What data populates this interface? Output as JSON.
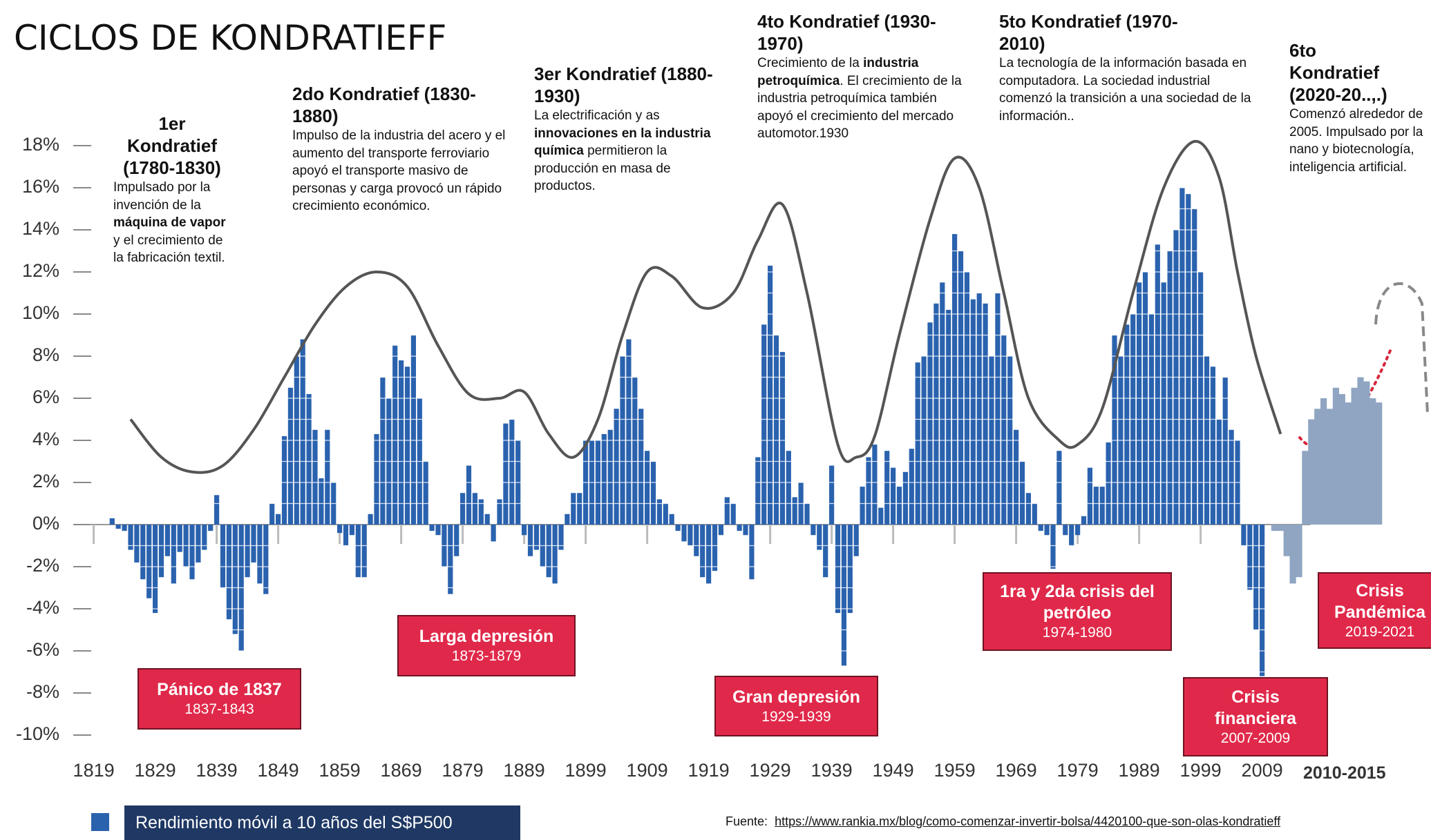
{
  "chart_data": {
    "type": "bar",
    "title": "CICLOS DE KONDRATIEFF",
    "x": [
      1822,
      1823,
      1824,
      1825,
      1826,
      1827,
      1828,
      1829,
      1830,
      1831,
      1832,
      1833,
      1834,
      1835,
      1836,
      1837,
      1838,
      1839,
      1840,
      1841,
      1842,
      1843,
      1844,
      1845,
      1846,
      1847,
      1848,
      1849,
      1850,
      1851,
      1852,
      1853,
      1854,
      1855,
      1856,
      1857,
      1858,
      1859,
      1860,
      1861,
      1862,
      1863,
      1864,
      1865,
      1866,
      1867,
      1868,
      1869,
      1870,
      1871,
      1872,
      1873,
      1874,
      1875,
      1876,
      1877,
      1878,
      1879,
      1880,
      1881,
      1882,
      1883,
      1884,
      1885,
      1886,
      1887,
      1888,
      1889,
      1890,
      1891,
      1892,
      1893,
      1894,
      1895,
      1896,
      1897,
      1898,
      1899,
      1900,
      1901,
      1902,
      1903,
      1904,
      1905,
      1906,
      1907,
      1908,
      1909,
      1910,
      1911,
      1912,
      1913,
      1914,
      1915,
      1916,
      1917,
      1918,
      1919,
      1920,
      1921,
      1922,
      1923,
      1924,
      1925,
      1926,
      1927,
      1928,
      1929,
      1930,
      1931,
      1932,
      1933,
      1934,
      1935,
      1936,
      1937,
      1938,
      1939,
      1940,
      1941,
      1942,
      1943,
      1944,
      1945,
      1946,
      1947,
      1948,
      1949,
      1950,
      1951,
      1952,
      1953,
      1954,
      1955,
      1956,
      1957,
      1958,
      1959,
      1960,
      1961,
      1962,
      1963,
      1964,
      1965,
      1966,
      1967,
      1968,
      1969,
      1970,
      1971,
      1972,
      1973,
      1974,
      1975,
      1976,
      1977,
      1978,
      1979,
      1980,
      1981,
      1982,
      1983,
      1984,
      1985,
      1986,
      1987,
      1988,
      1989,
      1990,
      1991,
      1992,
      1993,
      1994,
      1995,
      1996,
      1997,
      1998,
      1999,
      2000,
      2001,
      2002,
      2003,
      2004,
      2005,
      2006,
      2007,
      2008,
      2009
    ],
    "series": [
      {
        "name": "Rendimiento móvil a 10 años del S$P500",
        "color": "#2a62ae",
        "values": [
          0.3,
          -0.2,
          -0.3,
          -1.2,
          -1.8,
          -2.6,
          -3.5,
          -4.2,
          -2.5,
          -1.5,
          -2.8,
          -1.3,
          -2.0,
          -2.6,
          -1.8,
          -1.2,
          -0.3,
          1.4,
          -3.0,
          -4.5,
          -5.2,
          -6.0,
          -2.5,
          -1.8,
          -2.8,
          -3.3,
          1.0,
          0.5,
          4.2,
          6.5,
          8.0,
          8.8,
          6.2,
          4.5,
          2.2,
          4.5,
          2.0,
          -0.4,
          -1.0,
          -0.5,
          -2.5,
          -2.5,
          0.5,
          4.3,
          7.0,
          6.0,
          8.5,
          7.8,
          7.5,
          9.0,
          6.0,
          3.0,
          -0.3,
          -0.5,
          -2.0,
          -3.3,
          -1.5,
          1.5,
          2.8,
          1.5,
          1.2,
          0.5,
          -0.8,
          1.2,
          4.8,
          5.0,
          4.0,
          -0.5,
          -1.5,
          -1.2,
          -2.0,
          -2.5,
          -2.8,
          -1.2,
          0.5,
          1.5,
          1.5,
          4.0,
          4.0,
          4.0,
          4.3,
          4.5,
          5.5,
          8.0,
          8.8,
          7.0,
          5.5,
          3.5,
          3.0,
          1.2,
          1.0,
          0.5,
          -0.3,
          -0.8,
          -1.0,
          -1.5,
          -2.5,
          -2.8,
          -2.2,
          -0.5,
          1.3,
          1.0,
          -0.3,
          -0.5,
          -2.6,
          3.2,
          9.5,
          12.3,
          9.0,
          8.2,
          3.5,
          1.3,
          2.0,
          1.0,
          -0.5,
          -1.2,
          -2.5,
          2.8,
          -4.2,
          -6.7,
          -4.2,
          -1.5,
          1.8,
          3.2,
          3.8,
          0.8,
          3.5,
          2.7,
          1.8,
          2.5,
          3.6,
          7.7,
          8.0,
          9.6,
          10.5,
          11.5,
          10.2,
          13.8,
          13.0,
          12.0,
          10.7,
          11.0,
          10.5,
          8.0,
          11.0,
          9.0,
          8.0,
          4.5,
          3.0,
          1.5,
          1.0,
          -0.3,
          -0.5,
          -2.1,
          3.5,
          -0.5,
          -1.0,
          -0.5,
          0.4,
          2.7,
          1.8,
          1.8,
          3.9,
          9.0,
          8.0,
          9.5,
          10.0,
          11.5,
          12.0,
          10.0,
          13.3,
          11.5,
          13.0,
          14.0,
          16.0,
          15.7,
          15.0,
          12.0,
          8.0,
          7.5,
          5.0,
          7.0,
          4.5,
          4.0,
          -1.0,
          -3.1,
          -5.0,
          -7.2
        ]
      }
    ],
    "projection": {
      "color": "#8fa5c2",
      "x": [
        2011,
        2012,
        2013,
        2014,
        2015,
        2016,
        2017,
        2018,
        2019,
        2020,
        2021,
        2022,
        2023,
        2024,
        2025,
        2026,
        2027,
        2028
      ],
      "values": [
        -0.3,
        -0.3,
        -1.5,
        -2.8,
        -2.5,
        3.5,
        5.0,
        5.5,
        6.0,
        5.5,
        6.5,
        6.2,
        5.8,
        6.5,
        7.0,
        6.8,
        6.0,
        5.8
      ]
    },
    "curve": {
      "color": "#555555",
      "x": [
        1825,
        1830,
        1835,
        1840,
        1845,
        1850,
        1855,
        1860,
        1865,
        1870,
        1875,
        1880,
        1885,
        1889,
        1893,
        1897,
        1901,
        1905,
        1909,
        1913,
        1918,
        1923,
        1927,
        1931,
        1935,
        1940,
        1943,
        1946,
        1950,
        1955,
        1959,
        1963,
        1967,
        1971,
        1976,
        1979,
        1983,
        1988,
        1993,
        1998,
        2002,
        2005,
        2008,
        2012
      ],
      "values": [
        5.0,
        3.2,
        2.5,
        2.8,
        4.5,
        7.0,
        9.5,
        11.3,
        12.0,
        11.3,
        8.5,
        6.2,
        6.0,
        6.3,
        4.3,
        3.2,
        5.0,
        9.0,
        12.0,
        11.8,
        10.3,
        11.0,
        13.5,
        15.2,
        11.0,
        3.8,
        3.2,
        4.2,
        9.0,
        14.5,
        17.4,
        16.0,
        11.0,
        6.0,
        4.0,
        3.8,
        5.5,
        11.0,
        16.0,
        18.2,
        16.5,
        12.0,
        8.0,
        4.3
      ]
    },
    "xlim": [
      1815,
      2035
    ],
    "ylim": [
      -10,
      18
    ],
    "xticks": [
      1819,
      1829,
      1839,
      1849,
      1859,
      1869,
      1879,
      1889,
      1899,
      1909,
      1919,
      1929,
      1939,
      1949,
      1959,
      1969,
      1979,
      1989,
      1999,
      2009
    ],
    "yticks": [
      {
        "value": 18,
        "label": "18%"
      },
      {
        "value": 16,
        "label": "16%"
      },
      {
        "value": 14,
        "label": "14%"
      },
      {
        "value": 12,
        "label": "12%"
      },
      {
        "value": 10,
        "label": "10%"
      },
      {
        "value": 8,
        "label": "8%"
      },
      {
        "value": 6,
        "label": "6%"
      },
      {
        "value": 4,
        "label": "4%"
      },
      {
        "value": 2,
        "label": "2%"
      },
      {
        "value": 0,
        "label": "0%"
      },
      {
        "value": -2,
        "label": "-2%"
      },
      {
        "value": -4,
        "label": "-4%"
      },
      {
        "value": -6,
        "label": "-6%"
      },
      {
        "value": -8,
        "label": "-8%"
      },
      {
        "value": -10,
        "label": "-10%"
      }
    ],
    "period_label": "2010-2015",
    "annotations": [
      {
        "title": "1er Kondratief (1780-1830)",
        "body": [
          {
            "text": "Impulsado por la invención de la "
          },
          {
            "text": "máquina de vapor",
            "bold": true
          },
          {
            "text": " y el crecimiento de la fabricación textil."
          }
        ]
      },
      {
        "title": "2do Kondratief (1830-1880)",
        "body": [
          {
            "text": "Impulso de la industria del acero y el aumento del transporte ferroviario apoyó el transporte masivo de personas y carga provocó un rápido crecimiento económico."
          }
        ]
      },
      {
        "title": "3er Kondratief (1880-1930)",
        "body": [
          {
            "text": "La electrificación  y as "
          },
          {
            "text": "innovaciones en la industria química",
            "bold": true
          },
          {
            "text": " permitieron la producción en masa de productos."
          }
        ]
      },
      {
        "title": "4to Kondratief (1930-1970)",
        "body": [
          {
            "text": "Crecimiento de la "
          },
          {
            "text": "industria petroquímica",
            "bold": true
          },
          {
            "text": ". El crecimiento de la industria petroquímica también apoyó el crecimiento del mercado automotor.1930"
          }
        ]
      },
      {
        "title": "5to Kondratief (1970-2010)",
        "body": [
          {
            "text": "La tecnología de la información basada en computadora.  La sociedad industrial comenzó la transición a una sociedad de la información.."
          }
        ]
      },
      {
        "title": "6to Kondratief (2020-20..,.)",
        "body": [
          {
            "text": "Comenzó alrededor de 2005. Impulsado por la nano y biotecnología, inteligencia artificial."
          }
        ]
      }
    ],
    "crises": [
      {
        "title": "Pánico de 1837",
        "years": "1837-1843"
      },
      {
        "title": "Larga depresión",
        "years": "1873-1879"
      },
      {
        "title": "Gran depresión",
        "years": "1929-1939"
      },
      {
        "title": "1ra y 2da crisis del petróleo",
        "years": "1974-1980"
      },
      {
        "title": "Crisis financiera",
        "years": "2007-2009"
      },
      {
        "title": "Crisis Pandémica",
        "years": "2019-2021"
      }
    ],
    "source_prefix": "Fuente:",
    "source_url": "https://www.rankia.mx/blog/como-comenzar-invertir-bolsa/4420100-que-son-olas-kondratieff"
  }
}
